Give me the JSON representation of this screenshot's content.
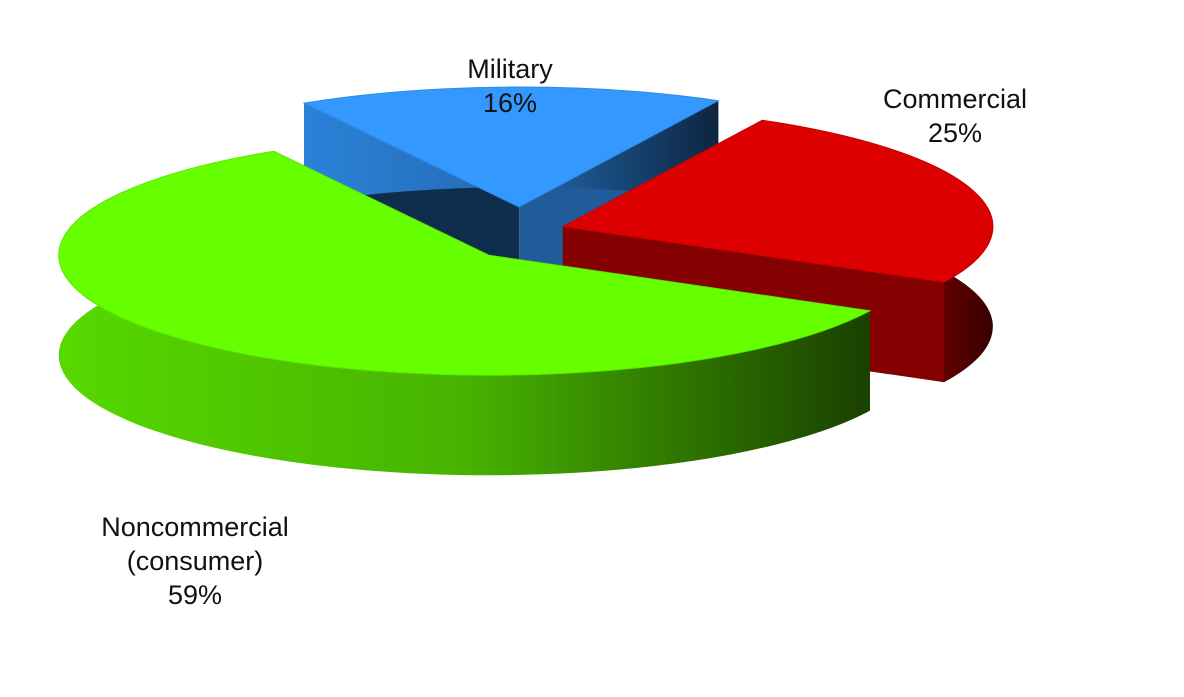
{
  "chart_data": {
    "type": "pie",
    "three_d": true,
    "categories": [
      "Military",
      "Commercial",
      "Noncommercial (consumer)"
    ],
    "values": [
      16,
      25,
      59
    ],
    "value_labels": [
      "16%",
      "25%",
      "59%"
    ],
    "colors": [
      "#3399ff",
      "#dd0000",
      "#66ff00"
    ]
  }
}
